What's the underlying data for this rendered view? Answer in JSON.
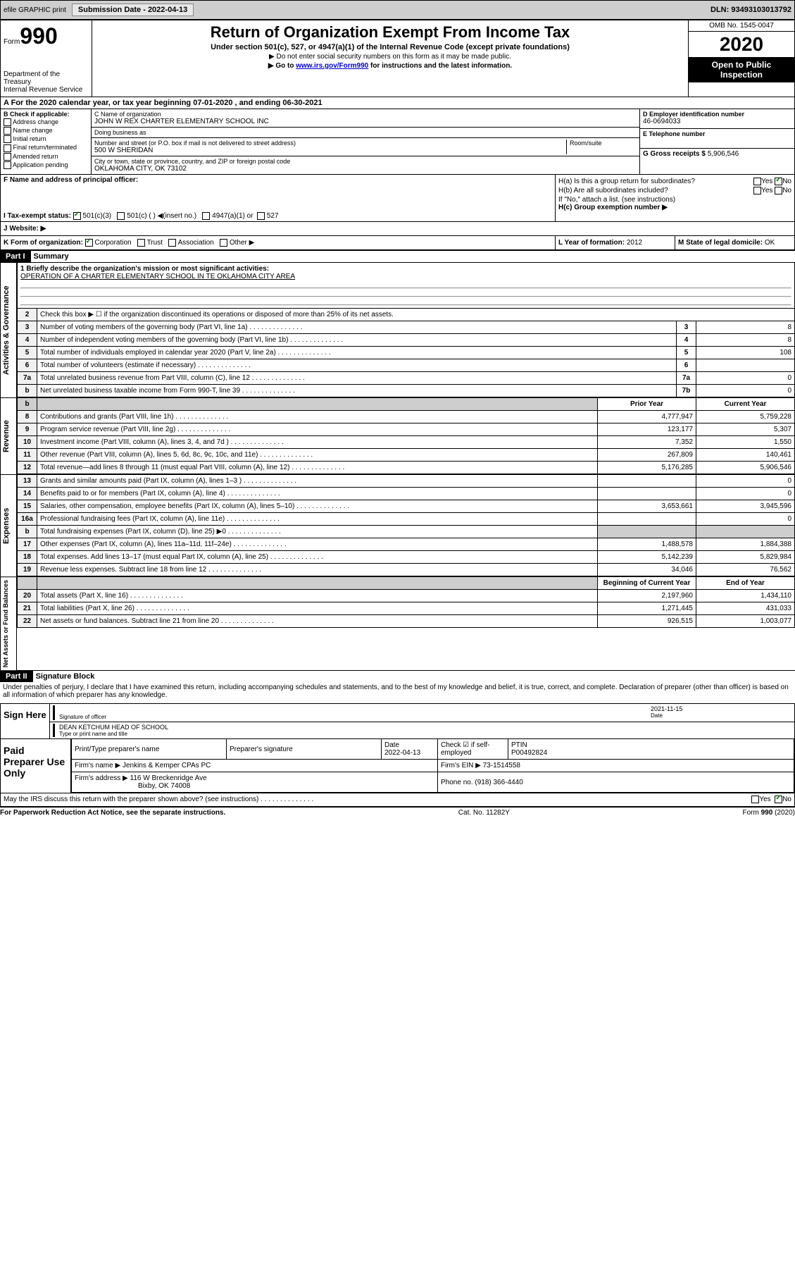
{
  "header": {
    "efile": "efile GRAPHIC print",
    "submission_label": "Submission Date - 2022-04-13",
    "dln": "DLN: 93493103013792"
  },
  "form_top": {
    "form_word": "Form",
    "form_num": "990",
    "title": "Return of Organization Exempt From Income Tax",
    "subtitle": "Under section 501(c), 527, or 4947(a)(1) of the Internal Revenue Code (except private foundations)",
    "note1": "▶ Do not enter social security numbers on this form as it may be made public.",
    "note2_pre": "▶ Go to ",
    "note2_link": "www.irs.gov/Form990",
    "note2_post": " for instructions and the latest information.",
    "omb": "OMB No. 1545-0047",
    "year": "2020",
    "open": "Open to Public Inspection",
    "dept": "Department of the Treasury",
    "irs": "Internal Revenue Service",
    "period": "For the 2020 calendar year, or tax year beginning 07-01-2020    , and ending 06-30-2021"
  },
  "block_b": {
    "label": "B Check if applicable:",
    "items": [
      "Address change",
      "Name change",
      "Initial return",
      "Final return/terminated",
      "Amended return",
      "Application pending"
    ]
  },
  "block_c": {
    "name_label": "C Name of organization",
    "name": "JOHN W REX CHARTER ELEMENTARY SCHOOL INC",
    "dba_label": "Doing business as",
    "dba": "",
    "street_label": "Number and street (or P.O. box if mail is not delivered to street address)",
    "street": "500 W SHERIDAN",
    "room_label": "Room/suite",
    "city_label": "City or town, state or province, country, and ZIP or foreign postal code",
    "city": "OKLAHOMA CITY, OK  73102"
  },
  "block_d": {
    "label": "D Employer identification number",
    "val": "46-0694033"
  },
  "block_e": {
    "label": "E Telephone number",
    "val": ""
  },
  "block_g": {
    "label": "G Gross receipts $ ",
    "val": "5,906,546"
  },
  "block_f": {
    "label": "F  Name and address of principal officer:"
  },
  "block_h": {
    "ha": "H(a)  Is this a group return for subordinates?",
    "ha_yes": "Yes",
    "ha_no": "No",
    "hb": "H(b)  Are all subordinates included?",
    "hb_note": "If \"No,\" attach a list. (see instructions)",
    "hc": "H(c)  Group exemption number ▶"
  },
  "block_i": {
    "label": "I    Tax-exempt status:",
    "opts": [
      "501(c)(3)",
      "501(c) (  ) ◀(insert no.)",
      "4947(a)(1) or",
      "527"
    ]
  },
  "block_j": {
    "label": "J   Website: ▶"
  },
  "block_k": {
    "label": "K Form of organization:",
    "opts": [
      "Corporation",
      "Trust",
      "Association",
      "Other ▶"
    ]
  },
  "block_l": {
    "label": "L Year of formation: ",
    "val": "2012"
  },
  "block_m": {
    "label": "M State of legal domicile: ",
    "val": "OK"
  },
  "part1": {
    "header": "Part I",
    "title": "Summary",
    "mission_label": "1   Briefly describe the organization's mission or most significant activities:",
    "mission": "OPERATION OF A CHARTER ELEMENTARY SCHOOL IN TE OKLAHOMA CITY AREA",
    "line2": "Check this box ▶ ☐ if the organization discontinued its operations or disposed of more than 25% of its net assets.",
    "rows_ag": [
      {
        "n": "3",
        "d": "Number of voting members of the governing body (Part VI, line 1a)",
        "c": "3",
        "v": "8"
      },
      {
        "n": "4",
        "d": "Number of independent voting members of the governing body (Part VI, line 1b)",
        "c": "4",
        "v": "8"
      },
      {
        "n": "5",
        "d": "Total number of individuals employed in calendar year 2020 (Part V, line 2a)",
        "c": "5",
        "v": "108"
      },
      {
        "n": "6",
        "d": "Total number of volunteers (estimate if necessary)",
        "c": "6",
        "v": ""
      },
      {
        "n": "7a",
        "d": "Total unrelated business revenue from Part VIII, column (C), line 12",
        "c": "7a",
        "v": "0"
      },
      {
        "n": "b",
        "d": "Net unrelated business taxable income from Form 990-T, line 39",
        "c": "7b",
        "v": "0"
      }
    ],
    "col_prior": "Prior Year",
    "col_current": "Current Year",
    "rows_rev": [
      {
        "n": "8",
        "d": "Contributions and grants (Part VIII, line 1h)",
        "p": "4,777,947",
        "c": "5,759,228"
      },
      {
        "n": "9",
        "d": "Program service revenue (Part VIII, line 2g)",
        "p": "123,177",
        "c": "5,307"
      },
      {
        "n": "10",
        "d": "Investment income (Part VIII, column (A), lines 3, 4, and 7d )",
        "p": "7,352",
        "c": "1,550"
      },
      {
        "n": "11",
        "d": "Other revenue (Part VIII, column (A), lines 5, 6d, 8c, 9c, 10c, and 11e)",
        "p": "267,809",
        "c": "140,461"
      },
      {
        "n": "12",
        "d": "Total revenue—add lines 8 through 11 (must equal Part VIII, column (A), line 12)",
        "p": "5,176,285",
        "c": "5,906,546"
      }
    ],
    "rows_exp": [
      {
        "n": "13",
        "d": "Grants and similar amounts paid (Part IX, column (A), lines 1–3 )",
        "p": "",
        "c": "0"
      },
      {
        "n": "14",
        "d": "Benefits paid to or for members (Part IX, column (A), line 4)",
        "p": "",
        "c": "0"
      },
      {
        "n": "15",
        "d": "Salaries, other compensation, employee benefits (Part IX, column (A), lines 5–10)",
        "p": "3,653,661",
        "c": "3,945,596"
      },
      {
        "n": "16a",
        "d": "Professional fundraising fees (Part IX, column (A), line 11e)",
        "p": "",
        "c": "0"
      },
      {
        "n": "b",
        "d": "Total fundraising expenses (Part IX, column (D), line 25) ▶0",
        "p": "shade",
        "c": "shade"
      },
      {
        "n": "17",
        "d": "Other expenses (Part IX, column (A), lines 11a–11d, 11f–24e)",
        "p": "1,488,578",
        "c": "1,884,388"
      },
      {
        "n": "18",
        "d": "Total expenses. Add lines 13–17 (must equal Part IX, column (A), line 25)",
        "p": "5,142,239",
        "c": "5,829,984"
      },
      {
        "n": "19",
        "d": "Revenue less expenses. Subtract line 18 from line 12",
        "p": "34,046",
        "c": "76,562"
      }
    ],
    "col_begin": "Beginning of Current Year",
    "col_end": "End of Year",
    "rows_na": [
      {
        "n": "20",
        "d": "Total assets (Part X, line 16)",
        "p": "2,197,960",
        "c": "1,434,110"
      },
      {
        "n": "21",
        "d": "Total liabilities (Part X, line 26)",
        "p": "1,271,445",
        "c": "431,033"
      },
      {
        "n": "22",
        "d": "Net assets or fund balances. Subtract line 21 from line 20",
        "p": "926,515",
        "c": "1,003,077"
      }
    ]
  },
  "side_labels": {
    "ag": "Activities & Governance",
    "rev": "Revenue",
    "exp": "Expenses",
    "na": "Net Assets or Fund Balances"
  },
  "part2": {
    "header": "Part II",
    "title": "Signature Block",
    "decl": "Under penalties of perjury, I declare that I have examined this return, including accompanying schedules and statements, and to the best of my knowledge and belief, it is true, correct, and complete. Declaration of preparer (other than officer) is based on all information of which preparer has any knowledge."
  },
  "sign": {
    "label": "Sign Here",
    "sig_off": "Signature of officer",
    "date": "2021-11-15",
    "date_lbl": "Date",
    "name": "DEAN KETCHUM HEAD OF SCHOOL",
    "name_lbl": "Type or print name and title"
  },
  "prep": {
    "label": "Paid Preparer Use Only",
    "print_lbl": "Print/Type preparer's name",
    "sig_lbl": "Preparer's signature",
    "date_lbl": "Date",
    "date": "2022-04-13",
    "check_lbl": "Check ☑ if self-employed",
    "ptin_lbl": "PTIN",
    "ptin": "P00492824",
    "firm_lbl": "Firm's name    ▶",
    "firm": "Jenkins & Kemper CPAs PC",
    "ein_lbl": "Firm's EIN ▶",
    "ein": "73-1514558",
    "addr_lbl": "Firm's address ▶",
    "addr1": "116 W Breckenridge Ave",
    "addr2": "Bixby, OK  74008",
    "phone_lbl": "Phone no. ",
    "phone": "(918) 366-4440"
  },
  "discuss": {
    "q": "May the IRS discuss this return with the preparer shown above? (see instructions)",
    "yes": "Yes",
    "no": "No"
  },
  "footer": {
    "left": "For Paperwork Reduction Act Notice, see the separate instructions.",
    "center": "Cat. No. 11282Y",
    "right": "Form 990 (2020)"
  }
}
